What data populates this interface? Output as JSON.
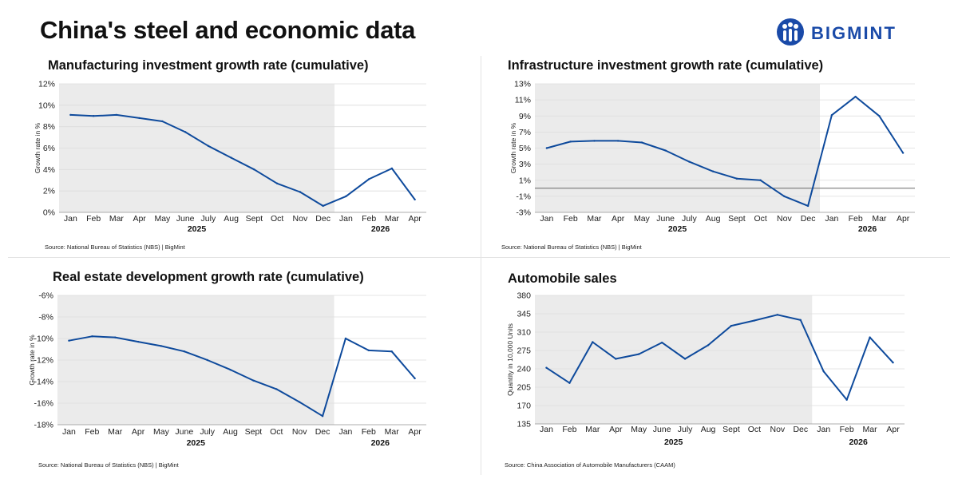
{
  "page": {
    "title": "China's steel and economic data",
    "logo_text": "BIGMINT"
  },
  "colors": {
    "line": "#0e4a9c",
    "shade": "#ebebeb",
    "grid": "#dcdcdc",
    "logo": "#1a4aa8"
  },
  "chart_data": [
    {
      "id": "mfg",
      "type": "line",
      "title": "Manufacturing investment growth rate (cumulative)",
      "ylabel": "Growth rate in %",
      "source": "Source: National Bureau of Statistics (NBS) |  BigMint",
      "categories": [
        "Jan",
        "Feb",
        "Mar",
        "Apr",
        "May",
        "June",
        "July",
        "Aug",
        "Sept",
        "Oct",
        "Nov",
        "Dec",
        "Jan",
        "Feb",
        "Mar",
        "Apr"
      ],
      "year_labels": [
        {
          "label": "2025",
          "from": 0,
          "to": 11
        },
        {
          "label": "2026",
          "from": 12,
          "to": 15
        }
      ],
      "shaded_until_index": 11,
      "values": [
        9.1,
        9.0,
        9.1,
        8.8,
        8.5,
        7.5,
        6.2,
        5.1,
        4.0,
        2.7,
        1.9,
        0.6,
        1.5,
        3.1,
        4.1,
        1.2
      ],
      "yticks": [
        "12%",
        "10%",
        "8%",
        "6%",
        "4%",
        "2%",
        "0%"
      ],
      "ylim": [
        0,
        12
      ],
      "ystep": 2,
      "zero_line": false
    },
    {
      "id": "infra",
      "type": "line",
      "title": "Infrastructure investment growth rate (cumulative)",
      "ylabel": "Growth rate in %",
      "source": "Source: National Bureau of Statistics (NBS) |  BigMint",
      "categories": [
        "Jan",
        "Feb",
        "Mar",
        "Apr",
        "May",
        "June",
        "July",
        "Aug",
        "Sept",
        "Oct",
        "Nov",
        "Dec",
        "Jan",
        "Feb",
        "Mar",
        "Apr"
      ],
      "year_labels": [
        {
          "label": "2025",
          "from": 0,
          "to": 11
        },
        {
          "label": "2026",
          "from": 12,
          "to": 15
        }
      ],
      "shaded_until_index": 11,
      "values": [
        5.0,
        5.8,
        5.9,
        5.9,
        5.7,
        4.7,
        3.3,
        2.1,
        1.2,
        1.0,
        -1.0,
        -2.2,
        9.1,
        11.4,
        9.0,
        4.4
      ],
      "yticks": [
        "13%",
        "11%",
        "9%",
        "7%",
        "5%",
        "3%",
        "1%",
        "-1%",
        "-3%"
      ],
      "ylim": [
        -3,
        13
      ],
      "ystep": 2,
      "zero_line": true
    },
    {
      "id": "realestate",
      "type": "line",
      "title": "Real estate development growth rate (cumulative)",
      "ylabel": "Growth rate in %",
      "source": "Source: National Bureau of Statistics (NBS) |  BigMint",
      "categories": [
        "Jan",
        "Feb",
        "Mar",
        "Apr",
        "May",
        "June",
        "July",
        "Aug",
        "Sept",
        "Oct",
        "Nov",
        "Dec",
        "Jan",
        "Feb",
        "Mar",
        "Apr"
      ],
      "year_labels": [
        {
          "label": "2025",
          "from": 0,
          "to": 11
        },
        {
          "label": "2026",
          "from": 12,
          "to": 15
        }
      ],
      "shaded_until_index": 11,
      "values": [
        -10.2,
        -9.8,
        -9.9,
        -10.3,
        -10.7,
        -11.2,
        -12.0,
        -12.9,
        -13.9,
        -14.7,
        -15.9,
        -17.2,
        -10.0,
        -11.1,
        -11.2,
        -13.7
      ],
      "yticks": [
        "-6%",
        "-8%",
        "-10%",
        "-12%",
        "-14%",
        "-16%",
        "-18%"
      ],
      "ylim": [
        -18,
        -6
      ],
      "ystep": 2,
      "zero_line": false
    },
    {
      "id": "auto",
      "type": "line",
      "title": "Automobile sales",
      "ylabel": "Quantity in 10,000 Units",
      "source": "Source: China Association of Automobile Manufacturers (CAAM)",
      "categories": [
        "Jan",
        "Feb",
        "Mar",
        "Apr",
        "May",
        "June",
        "July",
        "Aug",
        "Sept",
        "Oct",
        "Nov",
        "Dec",
        "Jan",
        "Feb",
        "Mar",
        "Apr"
      ],
      "year_labels": [
        {
          "label": "2025",
          "from": 0,
          "to": 11
        },
        {
          "label": "2026",
          "from": 12,
          "to": 15
        }
      ],
      "shaded_until_index": 11,
      "values": [
        242,
        213,
        291,
        259,
        268,
        290,
        259,
        285,
        322,
        332,
        343,
        333,
        235,
        181,
        300,
        252
      ],
      "yticks": [
        "380",
        "345",
        "310",
        "275",
        "240",
        "205",
        "170",
        "135"
      ],
      "ylim": [
        135,
        380
      ],
      "ystep": 35,
      "zero_line": false
    }
  ]
}
